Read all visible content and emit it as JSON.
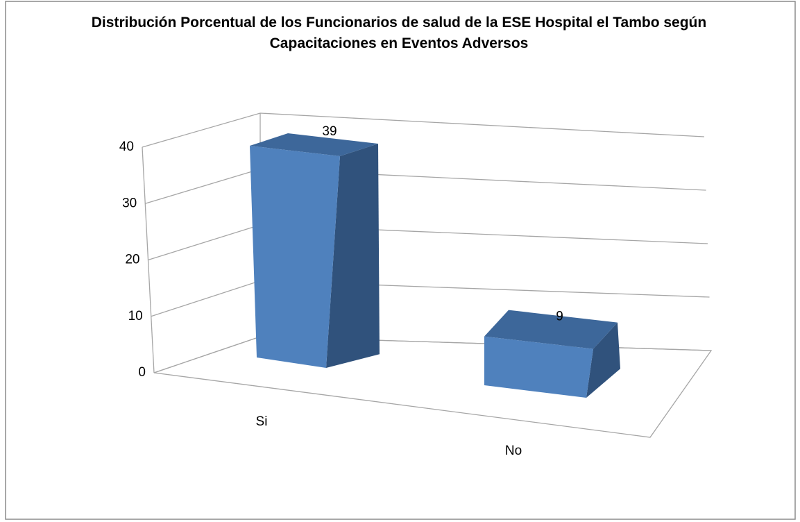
{
  "chart_data": {
    "type": "bar3d",
    "title": "Distribución Porcentual de los Funcionarios de salud de la ESE Hospital el Tambo según Capacitaciones en Eventos Adversos",
    "categories": [
      "Si",
      "No"
    ],
    "values": [
      39,
      9
    ],
    "color": "#4f81bd",
    "ylim": [
      0,
      40
    ],
    "yticks": [
      0,
      10,
      20,
      30,
      40
    ],
    "grid": true
  }
}
